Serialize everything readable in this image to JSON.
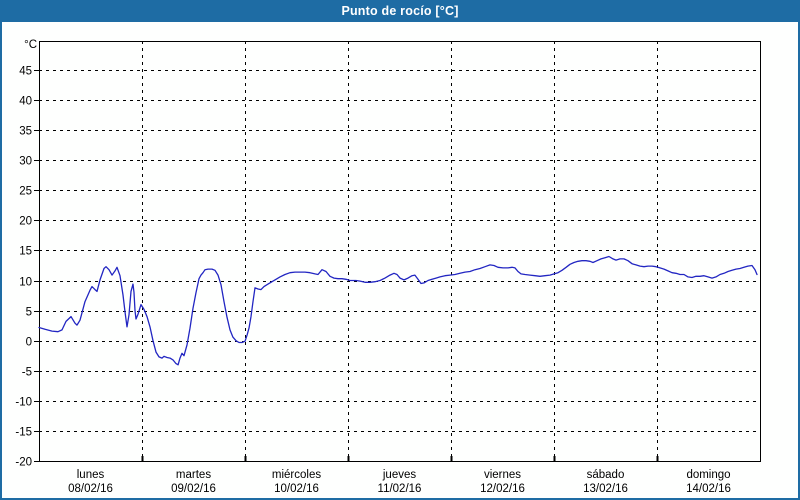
{
  "window": {
    "title": "Punto de rocío [°C]",
    "colors": {
      "titlebar_bg": "#1e6ca4",
      "titlebar_text": "#ffffff",
      "frame": "#1e6ca4",
      "plot_background": "#fefffe",
      "axis": "#000000",
      "gridline": "#000000",
      "series_line": "#2226c2",
      "label_text": "#000000"
    }
  },
  "chart_data": {
    "type": "line",
    "title": "Punto de rocío [°C]",
    "y_unit_label": "°C",
    "ylim": [
      -20,
      45
    ],
    "ytick_step": 5,
    "yticks": [
      45,
      40,
      35,
      30,
      25,
      20,
      15,
      10,
      5,
      0,
      -5,
      -10,
      -15,
      -20
    ],
    "grid": "dashed",
    "legend": "none",
    "x_axis_days": [
      {
        "name": "lunes",
        "date": "08/02/16"
      },
      {
        "name": "martes",
        "date": "09/02/16"
      },
      {
        "name": "miércoles",
        "date": "10/02/16"
      },
      {
        "name": "jueves",
        "date": "11/02/16"
      },
      {
        "name": "viernes",
        "date": "12/02/16"
      },
      {
        "name": "sábado",
        "date": "13/02/16"
      },
      {
        "name": "domingo",
        "date": "14/02/16"
      }
    ],
    "series": [
      {
        "name": "Punto de rocío",
        "x_unit": "days_from_monday_00h",
        "points": [
          [
            0.0,
            2.2
          ],
          [
            0.058,
            1.9
          ],
          [
            0.126,
            1.6
          ],
          [
            0.184,
            1.5
          ],
          [
            0.223,
            1.8
          ],
          [
            0.262,
            3.2
          ],
          [
            0.311,
            4.0
          ],
          [
            0.35,
            2.9
          ],
          [
            0.369,
            2.6
          ],
          [
            0.398,
            3.4
          ],
          [
            0.447,
            6.5
          ],
          [
            0.495,
            8.4
          ],
          [
            0.515,
            9.0
          ],
          [
            0.544,
            8.5
          ],
          [
            0.563,
            8.2
          ],
          [
            0.592,
            10.1
          ],
          [
            0.631,
            12.0
          ],
          [
            0.65,
            12.3
          ],
          [
            0.68,
            11.8
          ],
          [
            0.709,
            10.9
          ],
          [
            0.738,
            11.6
          ],
          [
            0.757,
            12.2
          ],
          [
            0.786,
            10.8
          ],
          [
            0.816,
            7.6
          ],
          [
            0.835,
            4.8
          ],
          [
            0.854,
            2.3
          ],
          [
            0.874,
            4.3
          ],
          [
            0.893,
            8.2
          ],
          [
            0.913,
            9.4
          ],
          [
            0.922,
            8.0
          ],
          [
            0.932,
            5.0
          ],
          [
            0.942,
            3.6
          ],
          [
            0.961,
            4.4
          ],
          [
            0.99,
            6.0
          ],
          [
            1.019,
            5.2
          ],
          [
            1.049,
            4.0
          ],
          [
            1.078,
            2.3
          ],
          [
            1.107,
            0.0
          ],
          [
            1.136,
            -1.9
          ],
          [
            1.165,
            -2.7
          ],
          [
            1.194,
            -2.9
          ],
          [
            1.214,
            -2.6
          ],
          [
            1.243,
            -2.8
          ],
          [
            1.272,
            -2.9
          ],
          [
            1.301,
            -3.2
          ],
          [
            1.33,
            -3.8
          ],
          [
            1.35,
            -4.0
          ],
          [
            1.369,
            -2.9
          ],
          [
            1.388,
            -2.1
          ],
          [
            1.408,
            -2.5
          ],
          [
            1.437,
            -0.7
          ],
          [
            1.466,
            2.1
          ],
          [
            1.495,
            5.4
          ],
          [
            1.524,
            8.0
          ],
          [
            1.553,
            10.3
          ],
          [
            1.573,
            10.9
          ],
          [
            1.592,
            11.3
          ],
          [
            1.612,
            11.8
          ],
          [
            1.641,
            11.9
          ],
          [
            1.68,
            11.9
          ],
          [
            1.709,
            11.7
          ],
          [
            1.738,
            10.9
          ],
          [
            1.767,
            9.3
          ],
          [
            1.796,
            6.5
          ],
          [
            1.825,
            3.9
          ],
          [
            1.854,
            1.8
          ],
          [
            1.883,
            0.6
          ],
          [
            1.913,
            0.0
          ],
          [
            1.942,
            -0.3
          ],
          [
            1.971,
            -0.3
          ],
          [
            2.0,
            -0.1
          ],
          [
            2.019,
            0.9
          ],
          [
            2.039,
            2.1
          ],
          [
            2.058,
            4.0
          ],
          [
            2.078,
            6.5
          ],
          [
            2.097,
            8.8
          ],
          [
            2.126,
            8.6
          ],
          [
            2.155,
            8.5
          ],
          [
            2.184,
            9.0
          ],
          [
            2.223,
            9.4
          ],
          [
            2.262,
            9.8
          ],
          [
            2.301,
            10.2
          ],
          [
            2.34,
            10.6
          ],
          [
            2.388,
            11.0
          ],
          [
            2.437,
            11.3
          ],
          [
            2.485,
            11.4
          ],
          [
            2.534,
            11.4
          ],
          [
            2.583,
            11.4
          ],
          [
            2.631,
            11.3
          ],
          [
            2.68,
            11.1
          ],
          [
            2.709,
            11.0
          ],
          [
            2.748,
            11.8
          ],
          [
            2.786,
            11.5
          ],
          [
            2.825,
            10.7
          ],
          [
            2.864,
            10.4
          ],
          [
            2.903,
            10.3
          ],
          [
            2.942,
            10.3
          ],
          [
            2.981,
            10.2
          ],
          [
            3.019,
            10.0
          ],
          [
            3.078,
            10.0
          ],
          [
            3.117,
            9.9
          ],
          [
            3.165,
            9.7
          ],
          [
            3.214,
            9.7
          ],
          [
            3.262,
            9.8
          ],
          [
            3.311,
            10.0
          ],
          [
            3.359,
            10.4
          ],
          [
            3.408,
            10.9
          ],
          [
            3.447,
            11.2
          ],
          [
            3.476,
            11.0
          ],
          [
            3.505,
            10.4
          ],
          [
            3.544,
            10.1
          ],
          [
            3.583,
            10.4
          ],
          [
            3.621,
            10.8
          ],
          [
            3.65,
            10.9
          ],
          [
            3.68,
            10.2
          ],
          [
            3.709,
            9.5
          ],
          [
            3.738,
            9.6
          ],
          [
            3.777,
            10.0
          ],
          [
            3.816,
            10.2
          ],
          [
            3.854,
            10.4
          ],
          [
            3.893,
            10.6
          ],
          [
            3.942,
            10.8
          ],
          [
            3.99,
            10.9
          ],
          [
            4.039,
            11.0
          ],
          [
            4.087,
            11.2
          ],
          [
            4.136,
            11.4
          ],
          [
            4.184,
            11.5
          ],
          [
            4.233,
            11.8
          ],
          [
            4.282,
            12.0
          ],
          [
            4.33,
            12.3
          ],
          [
            4.379,
            12.6
          ],
          [
            4.417,
            12.5
          ],
          [
            4.456,
            12.2
          ],
          [
            4.505,
            12.1
          ],
          [
            4.553,
            12.1
          ],
          [
            4.592,
            12.2
          ],
          [
            4.621,
            12.1
          ],
          [
            4.65,
            11.5
          ],
          [
            4.68,
            11.1
          ],
          [
            4.718,
            11.0
          ],
          [
            4.767,
            10.9
          ],
          [
            4.816,
            10.8
          ],
          [
            4.864,
            10.7
          ],
          [
            4.913,
            10.8
          ],
          [
            4.961,
            10.9
          ],
          [
            5.0,
            11.1
          ],
          [
            5.039,
            11.3
          ],
          [
            5.078,
            11.7
          ],
          [
            5.117,
            12.2
          ],
          [
            5.155,
            12.7
          ],
          [
            5.194,
            13.0
          ],
          [
            5.233,
            13.2
          ],
          [
            5.272,
            13.3
          ],
          [
            5.311,
            13.3
          ],
          [
            5.35,
            13.2
          ],
          [
            5.379,
            13.0
          ],
          [
            5.417,
            13.3
          ],
          [
            5.456,
            13.6
          ],
          [
            5.495,
            13.8
          ],
          [
            5.534,
            14.0
          ],
          [
            5.573,
            13.6
          ],
          [
            5.602,
            13.4
          ],
          [
            5.641,
            13.6
          ],
          [
            5.68,
            13.6
          ],
          [
            5.718,
            13.3
          ],
          [
            5.757,
            12.8
          ],
          [
            5.796,
            12.6
          ],
          [
            5.835,
            12.4
          ],
          [
            5.874,
            12.3
          ],
          [
            5.913,
            12.4
          ],
          [
            5.951,
            12.4
          ],
          [
            5.99,
            12.3
          ],
          [
            6.029,
            12.1
          ],
          [
            6.068,
            11.9
          ],
          [
            6.107,
            11.6
          ],
          [
            6.146,
            11.3
          ],
          [
            6.184,
            11.2
          ],
          [
            6.223,
            11.0
          ],
          [
            6.262,
            11.0
          ],
          [
            6.301,
            10.6
          ],
          [
            6.34,
            10.5
          ],
          [
            6.379,
            10.7
          ],
          [
            6.417,
            10.7
          ],
          [
            6.456,
            10.8
          ],
          [
            6.495,
            10.6
          ],
          [
            6.534,
            10.4
          ],
          [
            6.573,
            10.6
          ],
          [
            6.612,
            11.0
          ],
          [
            6.65,
            11.2
          ],
          [
            6.689,
            11.5
          ],
          [
            6.728,
            11.7
          ],
          [
            6.767,
            11.9
          ],
          [
            6.806,
            12.0
          ],
          [
            6.845,
            12.2
          ],
          [
            6.883,
            12.4
          ],
          [
            6.922,
            12.5
          ],
          [
            6.951,
            11.8
          ],
          [
            6.971,
            11.0
          ]
        ]
      }
    ]
  }
}
